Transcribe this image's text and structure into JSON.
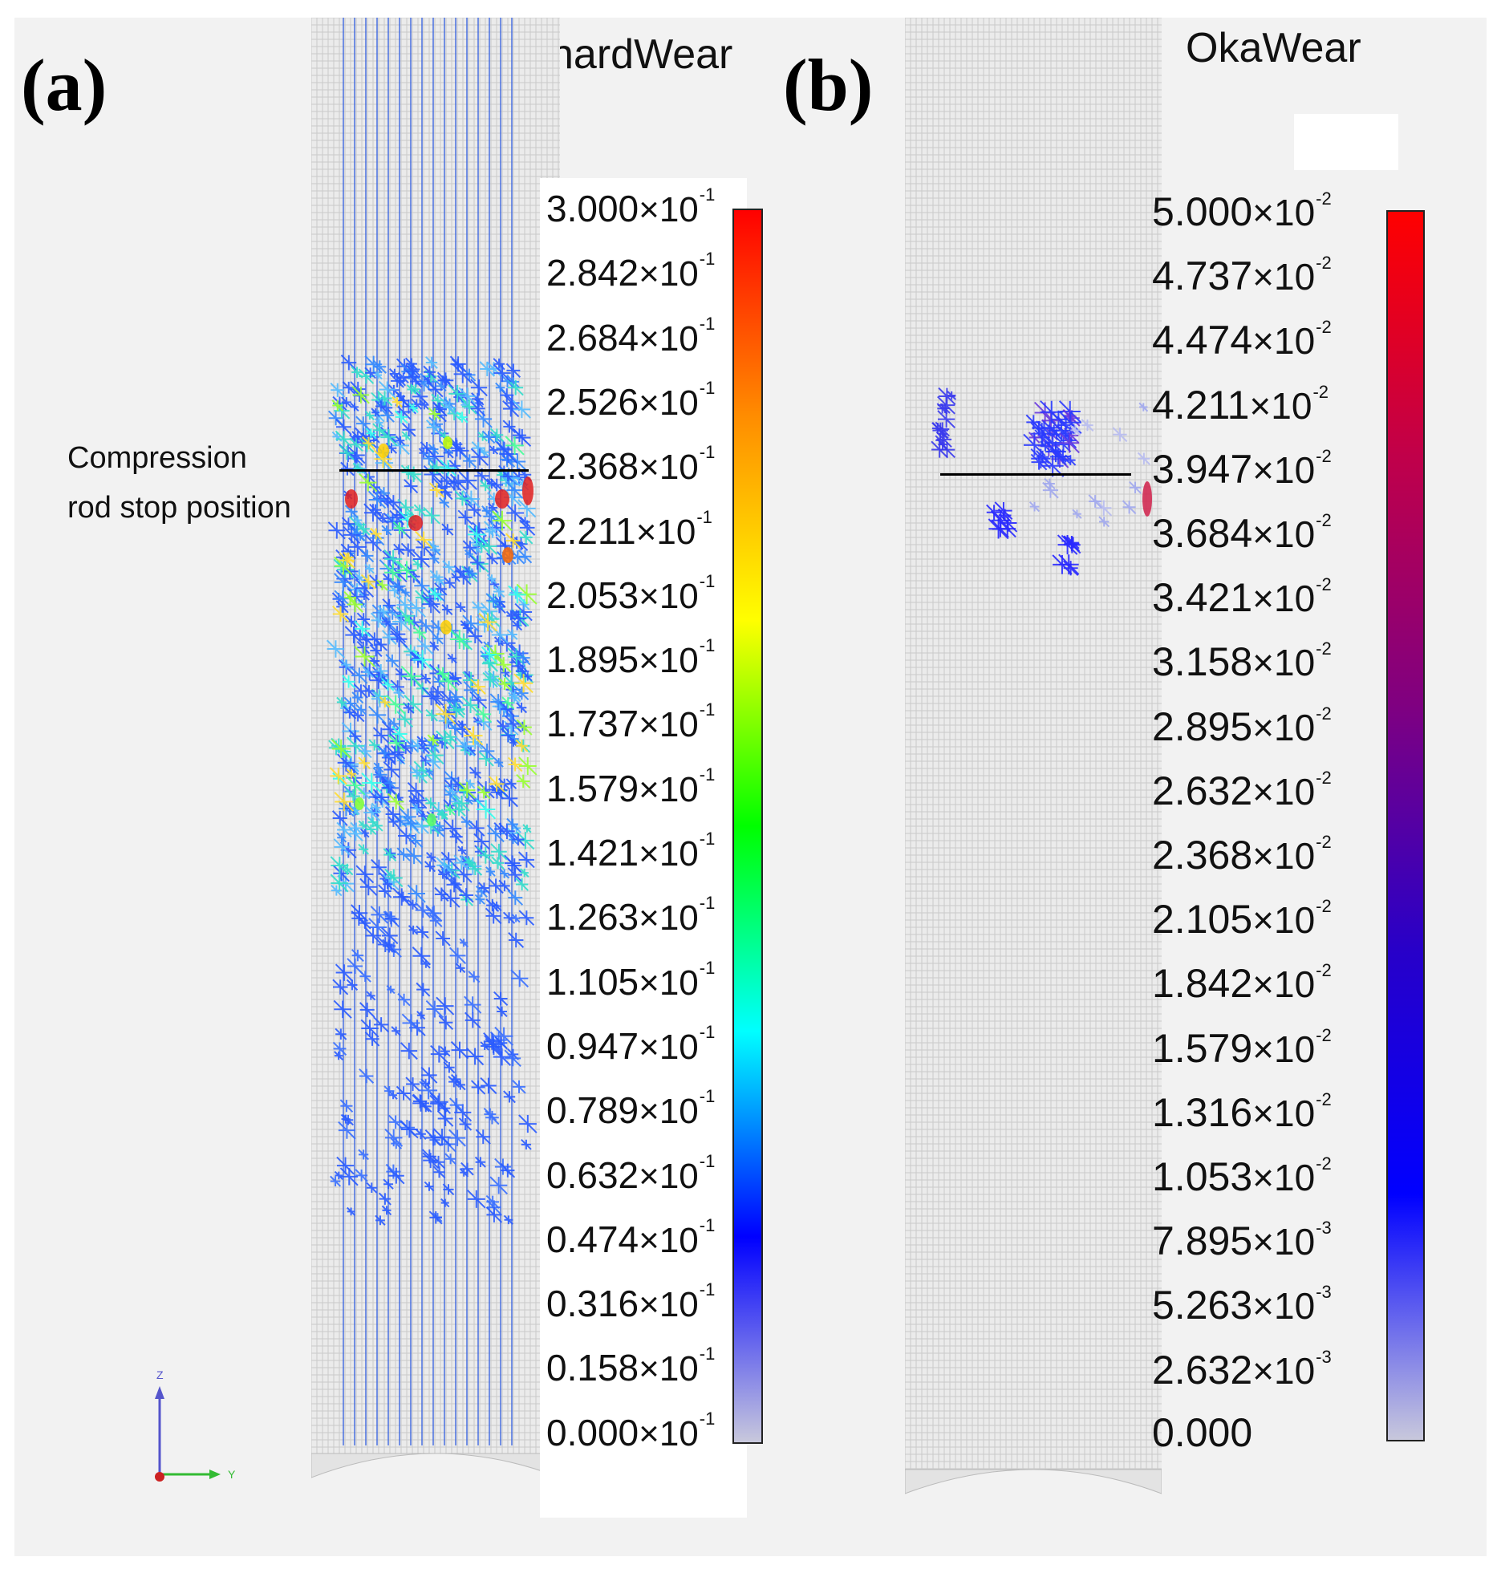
{
  "panel_a": {
    "label": "(a)",
    "title": "ArchardWear",
    "annotation_line1": "Compression",
    "annotation_line2": "rod stop position",
    "colorbar": {
      "ticks": [
        "3.000",
        "2.842",
        "2.684",
        "2.526",
        "2.368",
        "2.211",
        "2.053",
        "1.895",
        "1.737",
        "1.579",
        "1.421",
        "1.263",
        "1.105",
        "0.947",
        "0.789",
        "0.632",
        "0.474",
        "0.316",
        "0.158",
        "0.000"
      ],
      "exponent": "-1",
      "multiplier": "×10",
      "colors": [
        "#ff0000",
        "#ff8c00",
        "#ffff00",
        "#00ff00",
        "#00ffff",
        "#0000ff",
        "#c8c8dc"
      ]
    }
  },
  "panel_b": {
    "label": "(b)",
    "title": "OkaWear",
    "colorbar": {
      "ticks": [
        {
          "m": "5.000",
          "e": "-2"
        },
        {
          "m": "4.737",
          "e": "-2"
        },
        {
          "m": "4.474",
          "e": "-2"
        },
        {
          "m": "4.211",
          "e": "-2"
        },
        {
          "m": "3.947",
          "e": "-2"
        },
        {
          "m": "3.684",
          "e": "-2"
        },
        {
          "m": "3.421",
          "e": "-2"
        },
        {
          "m": "3.158",
          "e": "-2"
        },
        {
          "m": "2.895",
          "e": "-2"
        },
        {
          "m": "2.632",
          "e": "-2"
        },
        {
          "m": "2.368",
          "e": "-2"
        },
        {
          "m": "2.105",
          "e": "-2"
        },
        {
          "m": "1.842",
          "e": "-2"
        },
        {
          "m": "1.579",
          "e": "-2"
        },
        {
          "m": "1.316",
          "e": "-2"
        },
        {
          "m": "1.053",
          "e": "-2"
        },
        {
          "m": "7.895",
          "e": "-3"
        },
        {
          "m": "5.263",
          "e": "-3"
        },
        {
          "m": "2.632",
          "e": "-3"
        },
        {
          "m": "0.000",
          "e": ""
        }
      ],
      "multiplier": "×10",
      "colors": [
        "#ff0000",
        "#c0004a",
        "#800080",
        "#2800c8",
        "#0000ff",
        "#c8c8dc"
      ]
    }
  },
  "axes": {
    "z": "Z",
    "y": "Y"
  }
}
